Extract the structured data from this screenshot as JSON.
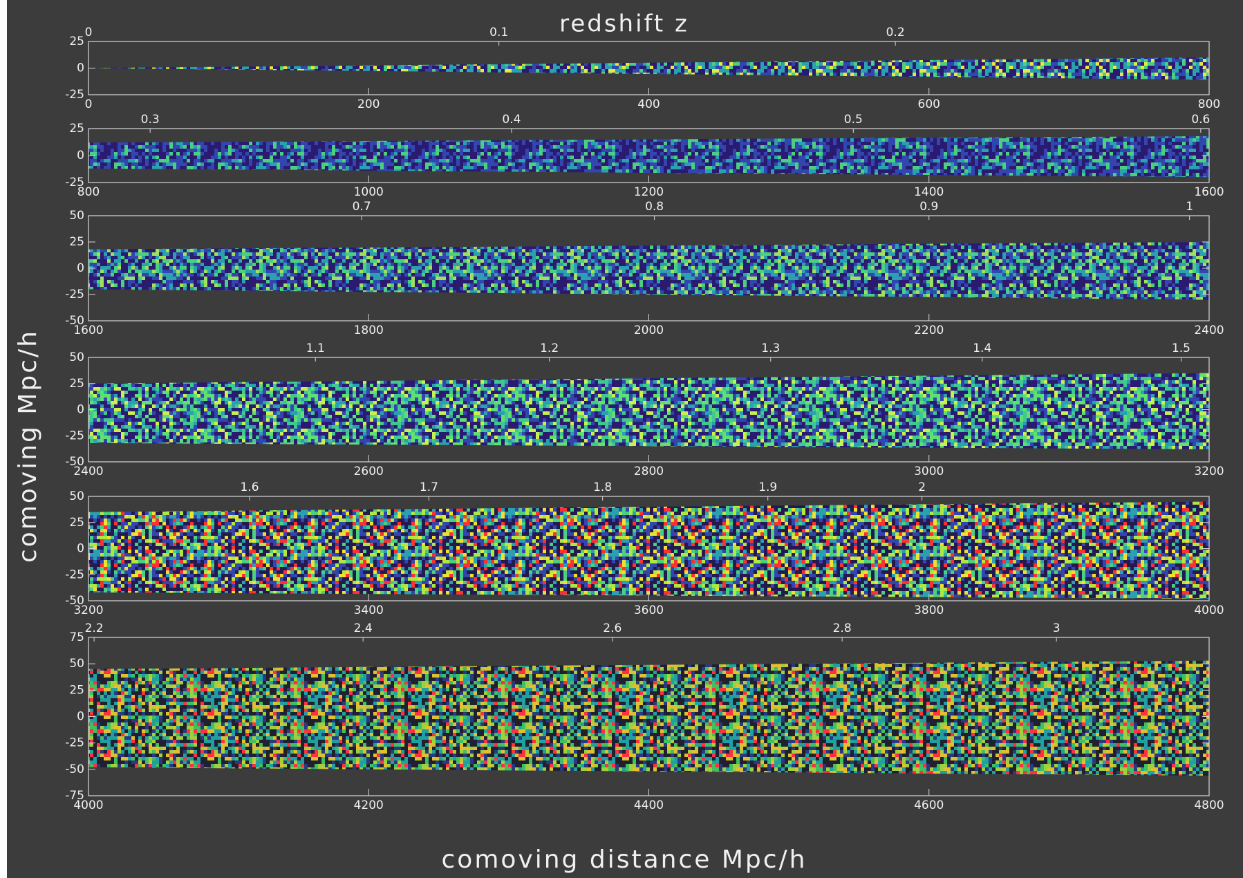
{
  "figure": {
    "title": "redshift z",
    "xlabel": "comoving distance Mpc/h",
    "ylabel": "comoving Mpc/h"
  },
  "chart_data": [
    {
      "type": "lightcone",
      "xlim": [
        0,
        800
      ],
      "xticks": [
        0,
        200,
        400,
        600,
        800
      ],
      "ylim": [
        -25,
        25
      ],
      "yticks": [
        -25,
        0,
        25
      ],
      "x2ticks": [
        {
          "value": 0,
          "label": "0"
        },
        {
          "value": 293,
          "label": "0.1"
        },
        {
          "value": 576,
          "label": "0.2"
        }
      ],
      "edges": {
        "upper": [
          0,
          10
        ],
        "lower": [
          0,
          -11
        ]
      },
      "colors": [
        "#2a1a70",
        "#3346b0",
        "#2aa0b0",
        "#4ad080",
        "#e8e840"
      ]
    },
    {
      "type": "lightcone",
      "xlim": [
        800,
        1600
      ],
      "xticks": [
        800,
        1000,
        1200,
        1400,
        1600
      ],
      "ylim": [
        -25,
        25
      ],
      "yticks": [
        -25,
        0,
        25
      ],
      "x2ticks": [
        {
          "value": 844,
          "label": "0.3"
        },
        {
          "value": 1102,
          "label": "0.4"
        },
        {
          "value": 1346,
          "label": "0.5"
        },
        {
          "value": 1594,
          "label": "0.6"
        }
      ],
      "edges": {
        "upper": [
          12,
          18
        ],
        "lower": [
          -12,
          -20
        ]
      },
      "colors": [
        "#2a1a70",
        "#3346b0",
        "#3346b0",
        "#2aa0b0",
        "#4ad080"
      ]
    },
    {
      "type": "lightcone",
      "xlim": [
        1600,
        2400
      ],
      "xticks": [
        1600,
        1800,
        2000,
        2200,
        2400
      ],
      "ylim": [
        -50,
        50
      ],
      "yticks": [
        -50,
        -25,
        0,
        25,
        50
      ],
      "x2ticks": [
        {
          "value": 1795,
          "label": "0.7"
        },
        {
          "value": 2004,
          "label": "0.8"
        },
        {
          "value": 2200,
          "label": "0.9"
        },
        {
          "value": 2386,
          "label": "1"
        }
      ],
      "edges": {
        "upper": [
          18,
          25
        ],
        "lower": [
          -20,
          -30
        ]
      },
      "colors": [
        "#2a1a70",
        "#3346b0",
        "#2aa0b0",
        "#4ad080",
        "#a0e060"
      ]
    },
    {
      "type": "lightcone",
      "xlim": [
        2400,
        3200
      ],
      "xticks": [
        2400,
        2600,
        2800,
        3000,
        3200
      ],
      "ylim": [
        -50,
        50
      ],
      "yticks": [
        -50,
        -25,
        0,
        25,
        50
      ],
      "x2ticks": [
        {
          "value": 2562,
          "label": "1.1"
        },
        {
          "value": 2729,
          "label": "1.2"
        },
        {
          "value": 2887,
          "label": "1.3"
        },
        {
          "value": 3038,
          "label": "1.4"
        },
        {
          "value": 3180,
          "label": "1.5"
        }
      ],
      "edges": {
        "upper": [
          25,
          35
        ],
        "lower": [
          -32,
          -38
        ]
      },
      "colors": [
        "#2a1a70",
        "#3346b0",
        "#2aa0b0",
        "#40c890",
        "#60e070",
        "#c8f050"
      ]
    },
    {
      "type": "lightcone",
      "xlim": [
        3200,
        4000
      ],
      "xticks": [
        3200,
        3400,
        3600,
        3800,
        4000
      ],
      "ylim": [
        -50,
        50
      ],
      "yticks": [
        -50,
        -25,
        0,
        25,
        50
      ],
      "x2ticks": [
        {
          "value": 3315,
          "label": "1.6"
        },
        {
          "value": 3443,
          "label": "1.7"
        },
        {
          "value": 3567,
          "label": "1.8"
        },
        {
          "value": 3685,
          "label": "1.9"
        },
        {
          "value": 3795,
          "label": "2"
        }
      ],
      "edges": {
        "upper": [
          35,
          45
        ],
        "lower": [
          -42,
          -48
        ]
      },
      "colors": [
        "#241a50",
        "#3346b0",
        "#2aa0b0",
        "#4ad080",
        "#b0e840",
        "#f0e030",
        "#ff3030"
      ]
    },
    {
      "type": "lightcone",
      "xlim": [
        4000,
        4800
      ],
      "xticks": [
        4000,
        4200,
        4400,
        4600,
        4800
      ],
      "ylim": [
        -75,
        75
      ],
      "yticks": [
        -75,
        -50,
        -25,
        0,
        25,
        50,
        75
      ],
      "x2ticks": [
        {
          "value": 4004,
          "label": "2.2"
        },
        {
          "value": 4196,
          "label": "2.4"
        },
        {
          "value": 4374,
          "label": "2.6"
        },
        {
          "value": 4538,
          "label": "2.8"
        },
        {
          "value": 4691,
          "label": "3"
        }
      ],
      "edges": {
        "upper": [
          45,
          53
        ],
        "lower": [
          -48,
          -56
        ]
      },
      "colors": [
        "#202030",
        "#2a3a80",
        "#20a0a0",
        "#40c060",
        "#a0d040",
        "#e0c030",
        "#ff3040"
      ]
    }
  ]
}
